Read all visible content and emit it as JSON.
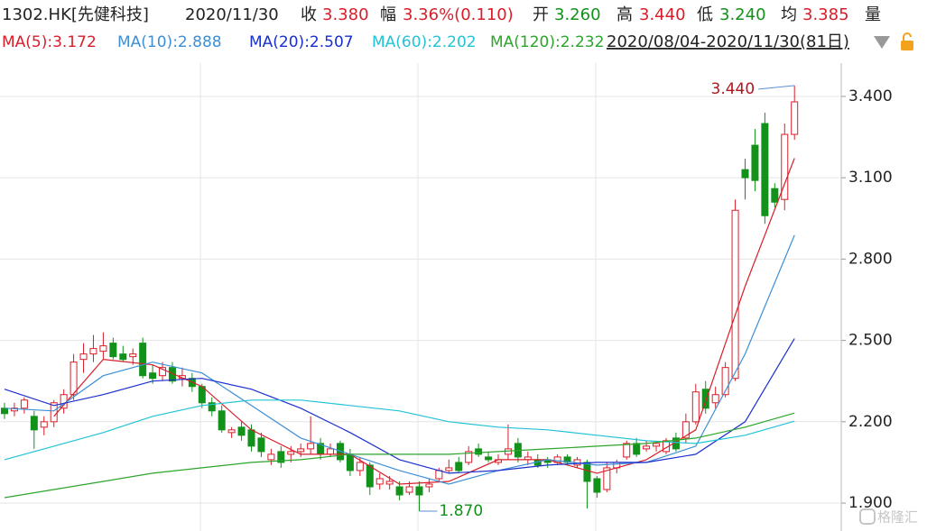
{
  "header": {
    "symbol": "1302.HK[先健科技]",
    "date": "2020/11/30",
    "items": [
      {
        "label": "收",
        "value": "3.380"
      },
      {
        "label": "幅",
        "value": "3.36%(0.110)"
      },
      {
        "label": "开",
        "value": "3.260"
      },
      {
        "label": "高",
        "value": "3.440"
      },
      {
        "label": "低",
        "value": "3.240"
      },
      {
        "label": "均",
        "value": "3.385"
      }
    ],
    "volume_label": "量",
    "range": "2020/08/04-2020/11/30(81日)"
  },
  "watermark": "格隆汇",
  "chart_data": {
    "type": "candlestick",
    "up_color": "#d81e2a",
    "down_color": "#12921a",
    "ylim": [
      1.797,
      3.473
    ],
    "yticks": [
      {
        "value": 1.9,
        "label": "1.900"
      },
      {
        "value": 2.2,
        "label": "2.200"
      },
      {
        "value": 2.5,
        "label": "2.500"
      },
      {
        "value": 2.8,
        "label": "2.800"
      },
      {
        "value": 3.1,
        "label": "3.100"
      },
      {
        "value": 3.4,
        "label": "3.400"
      }
    ],
    "grid": true,
    "candles": [
      [
        2.25,
        2.27,
        2.21,
        2.23
      ],
      [
        2.24,
        2.27,
        2.22,
        2.25
      ],
      [
        2.25,
        2.29,
        2.23,
        2.28
      ],
      [
        2.22,
        2.24,
        2.1,
        2.17
      ],
      [
        2.18,
        2.22,
        2.15,
        2.2
      ],
      [
        2.2,
        2.28,
        2.18,
        2.27
      ],
      [
        2.25,
        2.32,
        2.23,
        2.3
      ],
      [
        2.3,
        2.45,
        2.28,
        2.42
      ],
      [
        2.43,
        2.49,
        2.38,
        2.45
      ],
      [
        2.45,
        2.52,
        2.42,
        2.47
      ],
      [
        2.46,
        2.53,
        2.43,
        2.48
      ],
      [
        2.49,
        2.51,
        2.43,
        2.44
      ],
      [
        2.45,
        2.48,
        2.42,
        2.43
      ],
      [
        2.44,
        2.47,
        2.41,
        2.45
      ],
      [
        2.49,
        2.51,
        2.36,
        2.37
      ],
      [
        2.38,
        2.41,
        2.34,
        2.36
      ],
      [
        2.37,
        2.42,
        2.35,
        2.4
      ],
      [
        2.4,
        2.42,
        2.34,
        2.35
      ],
      [
        2.36,
        2.4,
        2.33,
        2.37
      ],
      [
        2.36,
        2.38,
        2.31,
        2.33
      ],
      [
        2.33,
        2.34,
        2.25,
        2.27
      ],
      [
        2.27,
        2.29,
        2.22,
        2.24
      ],
      [
        2.24,
        2.26,
        2.16,
        2.17
      ],
      [
        2.16,
        2.18,
        2.14,
        2.17
      ],
      [
        2.18,
        2.2,
        2.13,
        2.15
      ],
      [
        2.17,
        2.19,
        2.09,
        2.11
      ],
      [
        2.14,
        2.16,
        2.07,
        2.09
      ],
      [
        2.06,
        2.1,
        2.04,
        2.08
      ],
      [
        2.09,
        2.11,
        2.03,
        2.05
      ],
      [
        2.08,
        2.11,
        2.05,
        2.09
      ],
      [
        2.09,
        2.12,
        2.07,
        2.1
      ],
      [
        2.1,
        2.22,
        2.08,
        2.12
      ],
      [
        2.12,
        2.14,
        2.06,
        2.08
      ],
      [
        2.08,
        2.12,
        2.07,
        2.1
      ],
      [
        2.12,
        2.13,
        2.05,
        2.06
      ],
      [
        2.08,
        2.1,
        2.0,
        2.02
      ],
      [
        2.02,
        2.07,
        2.0,
        2.05
      ],
      [
        2.04,
        2.05,
        1.93,
        1.96
      ],
      [
        1.97,
        2.01,
        1.95,
        1.99
      ],
      [
        1.97,
        2.0,
        1.95,
        1.98
      ],
      [
        1.96,
        1.98,
        1.91,
        1.93
      ],
      [
        1.94,
        1.98,
        1.93,
        1.96
      ],
      [
        1.96,
        1.98,
        1.87,
        1.93
      ],
      [
        1.96,
        1.99,
        1.94,
        1.97
      ],
      [
        1.99,
        2.03,
        1.98,
        2.02
      ],
      [
        2.02,
        2.06,
        2.01,
        2.03
      ],
      [
        2.05,
        2.07,
        2.01,
        2.02
      ],
      [
        2.05,
        2.11,
        2.04,
        2.09
      ],
      [
        2.1,
        2.12,
        2.07,
        2.08
      ],
      [
        2.07,
        2.09,
        2.05,
        2.06
      ],
      [
        2.05,
        2.08,
        2.04,
        2.06
      ],
      [
        2.08,
        2.19,
        2.06,
        2.1
      ],
      [
        2.12,
        2.14,
        2.05,
        2.07
      ],
      [
        2.06,
        2.09,
        2.04,
        2.07
      ],
      [
        2.06,
        2.08,
        2.03,
        2.04
      ],
      [
        2.06,
        2.07,
        2.03,
        2.05
      ],
      [
        2.05,
        2.08,
        2.04,
        2.07
      ],
      [
        2.07,
        2.08,
        2.04,
        2.05
      ],
      [
        2.04,
        2.07,
        2.03,
        2.06
      ],
      [
        2.05,
        2.06,
        1.88,
        1.98
      ],
      [
        1.99,
        2.0,
        1.92,
        1.94
      ],
      [
        1.95,
        2.05,
        1.94,
        2.03
      ],
      [
        2.03,
        2.06,
        2.01,
        2.05
      ],
      [
        2.07,
        2.13,
        2.06,
        2.12
      ],
      [
        2.12,
        2.14,
        2.07,
        2.08
      ],
      [
        2.1,
        2.13,
        2.09,
        2.11
      ],
      [
        2.11,
        2.13,
        2.09,
        2.12
      ],
      [
        2.09,
        2.14,
        2.08,
        2.13
      ],
      [
        2.14,
        2.16,
        2.09,
        2.1
      ],
      [
        2.14,
        2.23,
        2.12,
        2.2
      ],
      [
        2.2,
        2.34,
        2.19,
        2.31
      ],
      [
        2.32,
        2.35,
        2.23,
        2.25
      ],
      [
        2.27,
        2.33,
        2.25,
        2.3
      ],
      [
        2.3,
        2.42,
        2.29,
        2.4
      ],
      [
        2.36,
        3.02,
        2.35,
        2.98
      ],
      [
        3.13,
        3.17,
        3.02,
        3.1
      ],
      [
        3.22,
        3.28,
        3.05,
        3.09
      ],
      [
        3.3,
        3.34,
        2.93,
        2.96
      ],
      [
        3.06,
        3.08,
        2.99,
        3.01
      ],
      [
        3.02,
        3.3,
        2.98,
        3.26
      ],
      [
        3.26,
        3.44,
        3.24,
        3.38
      ]
    ],
    "x": [
      0,
      5,
      10,
      15,
      20,
      25,
      30,
      35,
      40,
      45,
      50,
      55,
      60,
      65,
      70,
      75,
      80
    ],
    "series": [
      {
        "name": "MA(5):3.172",
        "color": "#d81e2a",
        "values": [
          null,
          2.22,
          2.43,
          2.41,
          2.33,
          2.17,
          2.08,
          2.08,
          1.97,
          1.98,
          2.06,
          2.06,
          2.01,
          2.06,
          2.17,
          2.7,
          3.172
        ]
      },
      {
        "name": "MA(10):2.888",
        "color": "#3d8fd6",
        "values": [
          2.25,
          2.24,
          2.37,
          2.42,
          2.38,
          2.26,
          2.14,
          2.08,
          2.02,
          1.97,
          2.02,
          2.06,
          2.04,
          2.05,
          2.11,
          2.45,
          2.888
        ]
      },
      {
        "name": "MA(20):2.507",
        "color": "#1a2fcf",
        "values": [
          2.32,
          2.26,
          2.3,
          2.35,
          2.36,
          2.32,
          2.25,
          2.16,
          2.06,
          2.01,
          2.02,
          2.04,
          2.05,
          2.05,
          2.08,
          2.2,
          2.507
        ]
      },
      {
        "name": "MA(60):2.202",
        "color": "#22c3d6",
        "values": [
          2.06,
          2.11,
          2.16,
          2.22,
          2.26,
          2.28,
          2.28,
          2.26,
          2.24,
          2.2,
          2.18,
          2.17,
          2.15,
          2.13,
          2.12,
          2.15,
          2.202
        ]
      },
      {
        "name": "MA(120):2.232",
        "color": "#2ca52c",
        "values": [
          1.92,
          1.95,
          1.98,
          2.01,
          2.03,
          2.05,
          2.06,
          2.08,
          2.08,
          2.08,
          2.09,
          2.1,
          2.11,
          2.12,
          2.14,
          2.18,
          2.232
        ]
      }
    ],
    "annotations": [
      {
        "label": "3.440",
        "value": 3.44,
        "x": 80
      },
      {
        "label": "1.870",
        "value": 1.87,
        "x": 42
      }
    ]
  }
}
